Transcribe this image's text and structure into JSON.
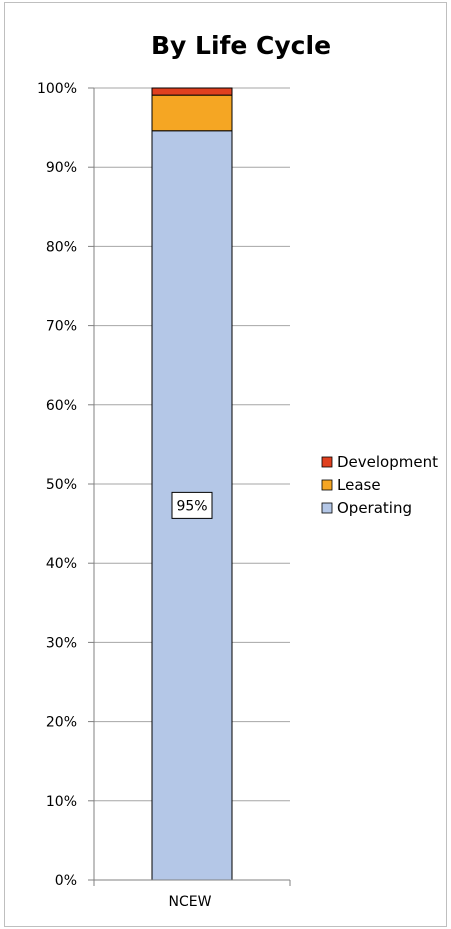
{
  "chart_data": {
    "type": "bar",
    "stacked": true,
    "percent_stacked": true,
    "title": "By Life Cycle",
    "xlabel": "",
    "ylabel": "",
    "categories": [
      "NCEW"
    ],
    "ylim": [
      0,
      100
    ],
    "y_ticks": [
      "0%",
      "10%",
      "20%",
      "30%",
      "40%",
      "50%",
      "60%",
      "70%",
      "80%",
      "90%",
      "100%"
    ],
    "grid": true,
    "legend_position": "right",
    "series": [
      {
        "name": "Operating",
        "values": [
          94.6
        ],
        "color": "#b4c7e7"
      },
      {
        "name": "Lease",
        "values": [
          4.5
        ],
        "color": "#f5a623"
      },
      {
        "name": "Development",
        "values": [
          0.9
        ],
        "color": "#e0401f"
      }
    ],
    "data_labels": [
      {
        "series": "Operating",
        "category": "NCEW",
        "text": "95%"
      }
    ]
  }
}
